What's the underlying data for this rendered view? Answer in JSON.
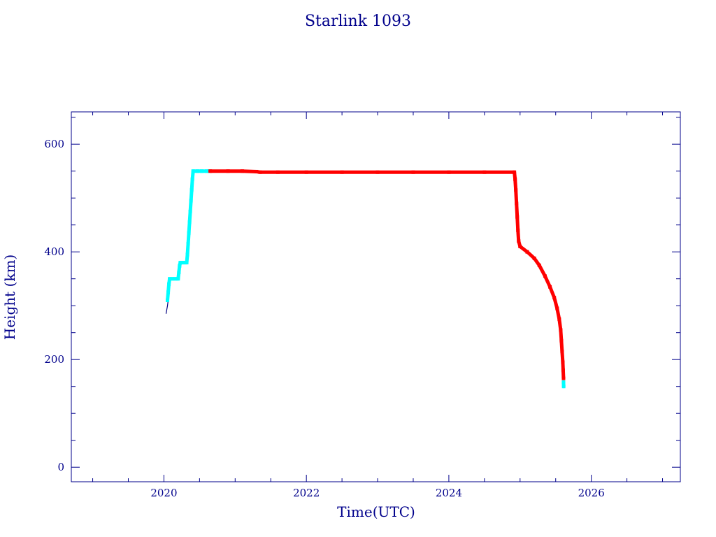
{
  "chart_data": {
    "type": "scatter",
    "title": "Starlink 1093",
    "xlabel": "Time(UTC)",
    "ylabel": "Height (km)",
    "xlim": [
      2018.7,
      2027.25
    ],
    "ylim": [
      -27,
      660
    ],
    "x_ticks": [
      2020,
      2022,
      2024,
      2026
    ],
    "y_ticks": [
      0,
      200,
      400,
      600
    ],
    "x_tick_labels": [
      "2020",
      "2022",
      "2024",
      "2026"
    ],
    "y_tick_labels": [
      "0",
      "200",
      "400",
      "600"
    ],
    "colors": {
      "axes": "#00008b",
      "raising": "#00ffff",
      "operational": "#ff0000",
      "initial": "#000080"
    },
    "series": [
      {
        "color": "#000080",
        "points": [
          [
            2020.03,
            285
          ],
          [
            2020.05,
            300
          ],
          [
            2020.06,
            310
          ]
        ]
      },
      {
        "color": "#00ffff",
        "points": [
          [
            2020.05,
            310
          ],
          [
            2020.06,
            325
          ],
          [
            2020.07,
            340
          ],
          [
            2020.08,
            350
          ],
          [
            2020.12,
            350
          ],
          [
            2020.16,
            350
          ],
          [
            2020.2,
            350
          ],
          [
            2020.21,
            362
          ],
          [
            2020.22,
            374
          ],
          [
            2020.23,
            380
          ],
          [
            2020.27,
            380
          ],
          [
            2020.32,
            380
          ],
          [
            2020.33,
            395
          ],
          [
            2020.34,
            415
          ],
          [
            2020.35,
            435
          ],
          [
            2020.36,
            455
          ],
          [
            2020.37,
            475
          ],
          [
            2020.38,
            495
          ],
          [
            2020.39,
            515
          ],
          [
            2020.4,
            535
          ],
          [
            2020.41,
            550
          ],
          [
            2020.47,
            550
          ],
          [
            2020.53,
            550
          ],
          [
            2020.6,
            550
          ],
          [
            2020.63,
            550
          ]
        ]
      },
      {
        "color": "#ff0000",
        "points": [
          [
            2020.65,
            550
          ],
          [
            2020.9,
            550
          ],
          [
            2021.1,
            550
          ],
          [
            2021.3,
            549
          ],
          [
            2021.35,
            548
          ],
          [
            2021.6,
            548
          ],
          [
            2022.0,
            548
          ],
          [
            2022.5,
            548
          ],
          [
            2023.0,
            548
          ],
          [
            2023.5,
            548
          ],
          [
            2024.0,
            548
          ],
          [
            2024.5,
            548
          ],
          [
            2024.92,
            548
          ],
          [
            2024.93,
            535
          ],
          [
            2024.94,
            515
          ],
          [
            2024.95,
            490
          ],
          [
            2024.96,
            465
          ],
          [
            2024.97,
            440
          ],
          [
            2024.98,
            420
          ],
          [
            2025.0,
            410
          ],
          [
            2025.1,
            400
          ],
          [
            2025.2,
            388
          ],
          [
            2025.27,
            375
          ],
          [
            2025.35,
            355
          ],
          [
            2025.42,
            335
          ],
          [
            2025.48,
            315
          ],
          [
            2025.52,
            295
          ],
          [
            2025.55,
            275
          ],
          [
            2025.57,
            255
          ],
          [
            2025.58,
            235
          ],
          [
            2025.59,
            215
          ],
          [
            2025.6,
            195
          ],
          [
            2025.605,
            180
          ],
          [
            2025.61,
            165
          ]
        ]
      },
      {
        "color": "#00ffff",
        "points": [
          [
            2025.61,
            158
          ],
          [
            2025.612,
            150
          ]
        ]
      }
    ]
  }
}
